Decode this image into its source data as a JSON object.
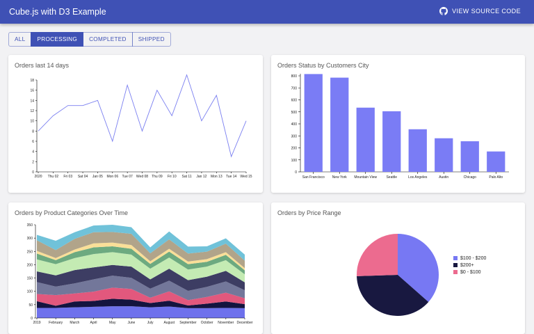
{
  "app": {
    "title": "Cube.js with D3 Example",
    "source_label": "VIEW SOURCE CODE"
  },
  "tabs": [
    "ALL",
    "PROCESSING",
    "COMPLETED",
    "SHIPPED"
  ],
  "active_tab": 1,
  "cards": {
    "line": {
      "title": "Orders last 14 days"
    },
    "bar": {
      "title": "Orders Status by Customers City"
    },
    "area": {
      "title": "Orders by Product Categories Over Time"
    },
    "pie": {
      "title": "Orders by Price Range"
    }
  },
  "chart_data": [
    {
      "type": "line",
      "title": "Orders last 14 days",
      "categories": [
        "2020",
        "Thu 02",
        "Fri 03",
        "Sat 04",
        "Jan 05",
        "Mon 06",
        "Tue 07",
        "Wed 08",
        "Thu 09",
        "Fri 10",
        "Sat 11",
        "Jan 12",
        "Mon 13",
        "Tue 14",
        "Wed 15"
      ],
      "values": [
        8,
        11,
        13,
        13,
        14,
        6,
        17,
        8,
        16,
        11,
        19,
        10,
        15,
        3,
        10
      ],
      "ylim": [
        0,
        18
      ],
      "yticks": [
        0,
        2,
        4,
        6,
        8,
        10,
        12,
        14,
        16,
        18
      ],
      "color": "#7a7ff0"
    },
    {
      "type": "bar",
      "title": "Orders Status by Customers City",
      "categories": [
        "San Francisco",
        "New York",
        "Mountain View",
        "Seattle",
        "Los Angeles",
        "Austin",
        "Chicago",
        "Palo Alto"
      ],
      "values": [
        815,
        785,
        535,
        505,
        355,
        280,
        255,
        170
      ],
      "ylim": [
        0,
        800
      ],
      "yticks": [
        0,
        100,
        200,
        300,
        400,
        500,
        600,
        700,
        800
      ],
      "color": "#7a7cf5"
    },
    {
      "type": "area",
      "title": "Orders by Product Categories Over Time",
      "categories": [
        "2019",
        "February",
        "March",
        "April",
        "May",
        "June",
        "July",
        "August",
        "September",
        "October",
        "November",
        "December"
      ],
      "ylim": [
        0,
        350
      ],
      "yticks": [
        0,
        50,
        100,
        150,
        200,
        250,
        300,
        350
      ],
      "series": [
        {
          "values": [
            38,
            38,
            40,
            42,
            44,
            44,
            40,
            43,
            37,
            37,
            38,
            37
          ]
        },
        {
          "values": [
            25,
            8,
            22,
            22,
            28,
            25,
            16,
            22,
            10,
            17,
            24,
            15
          ]
        },
        {
          "values": [
            27,
            40,
            30,
            35,
            42,
            40,
            20,
            35,
            20,
            25,
            33,
            22
          ]
        },
        {
          "values": [
            45,
            32,
            38,
            46,
            45,
            42,
            34,
            40,
            35,
            38,
            42,
            30
          ]
        },
        {
          "values": [
            40,
            42,
            50,
            45,
            40,
            42,
            35,
            45,
            40,
            38,
            40,
            30
          ]
        },
        {
          "values": [
            45,
            42,
            45,
            50,
            48,
            45,
            40,
            42,
            40,
            38,
            40,
            30
          ]
        },
        {
          "values": [
            22,
            15,
            22,
            25,
            22,
            22,
            18,
            22,
            20,
            18,
            20,
            15
          ]
        },
        {
          "values": [
            10,
            8,
            10,
            15,
            14,
            14,
            10,
            11,
            10,
            10,
            10,
            8
          ]
        },
        {
          "values": [
            40,
            30,
            40,
            42,
            40,
            42,
            30,
            35,
            30,
            28,
            32,
            28
          ]
        },
        {
          "values": [
            20,
            35,
            25,
            25,
            27,
            25,
            22,
            30,
            26,
            20,
            20,
            23
          ]
        }
      ],
      "colors": [
        "#6e71ec",
        "#14143f",
        "#e2587d",
        "#73779a",
        "#3d3d63",
        "#c4ebb3",
        "#6daa80",
        "#f9df98",
        "#b1a48a",
        "#70c2d9"
      ]
    },
    {
      "type": "pie",
      "title": "Orders by Price Range",
      "labels": [
        "$100 - $200",
        "$200+",
        "$0 - $100"
      ],
      "values": [
        0.365,
        0.38,
        0.255
      ],
      "colors": [
        "#7778f3",
        "#181840",
        "#ec6b8f"
      ],
      "legend": "right"
    }
  ]
}
